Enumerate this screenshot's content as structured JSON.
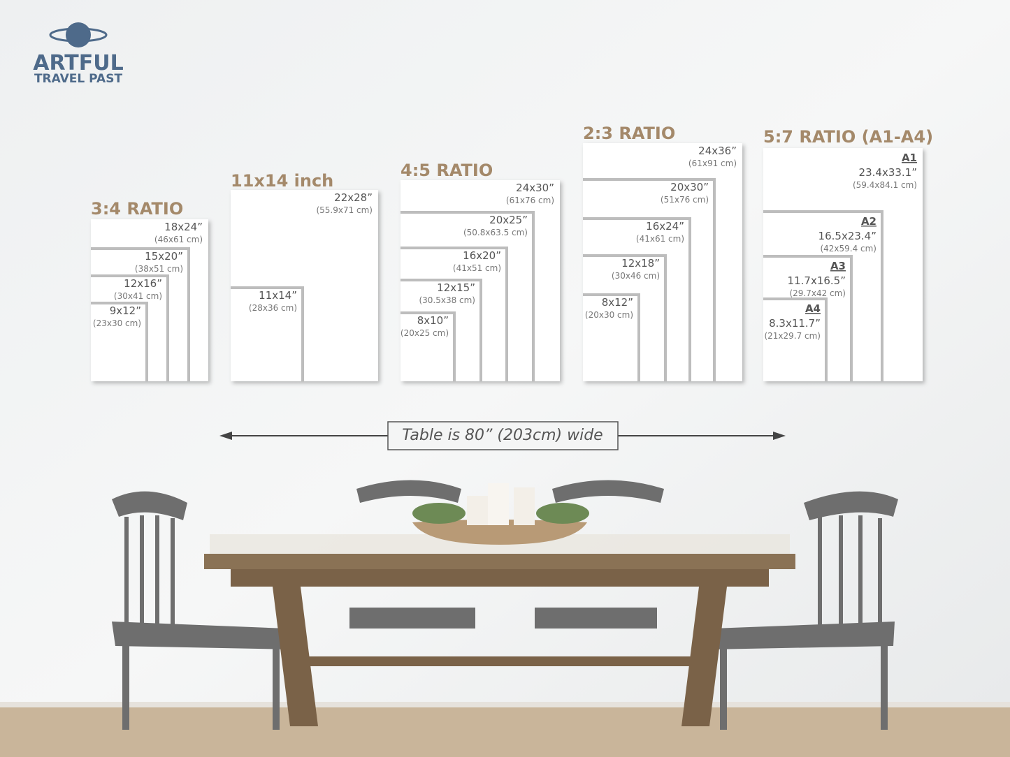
{
  "logo": {
    "line1": "ARTFUL",
    "line2": "TRAVEL PAST"
  },
  "groups": [
    {
      "title": "3:4 RATIO",
      "sizes": [
        {
          "size": "18x24”",
          "metric": "(46x61 cm)"
        },
        {
          "size": "15x20”",
          "metric": "(38x51 cm)"
        },
        {
          "size": "12x16”",
          "metric": "(30x41 cm)"
        },
        {
          "size": "9x12”",
          "metric": "(23x30 cm)"
        }
      ]
    },
    {
      "title": "11x14 inch",
      "sizes": [
        {
          "size": "22x28”",
          "metric": "(55.9x71 cm)"
        },
        {
          "size": "11x14”",
          "metric": "(28x36 cm)"
        }
      ]
    },
    {
      "title": "4:5 RATIO",
      "sizes": [
        {
          "size": "24x30”",
          "metric": "(61x76 cm)"
        },
        {
          "size": "20x25”",
          "metric": "(50.8x63.5 cm)"
        },
        {
          "size": "16x20”",
          "metric": "(41x51 cm)"
        },
        {
          "size": "12x15”",
          "metric": "(30.5x38 cm)"
        },
        {
          "size": "8x10”",
          "metric": "(20x25 cm)"
        }
      ]
    },
    {
      "title": "2:3 RATIO",
      "sizes": [
        {
          "size": "24x36”",
          "metric": "(61x91 cm)"
        },
        {
          "size": "20x30”",
          "metric": "(51x76 cm)"
        },
        {
          "size": "16x24”",
          "metric": "(41x61 cm)"
        },
        {
          "size": "12x18”",
          "metric": "(30x46 cm)"
        },
        {
          "size": "8x12”",
          "metric": "(20x30 cm)"
        }
      ]
    },
    {
      "title": "5:7 RATIO (A1-A4)",
      "sizes": [
        {
          "name": "A1",
          "size": "23.4x33.1”",
          "metric": "(59.4x84.1 cm)"
        },
        {
          "name": "A2",
          "size": "16.5x23.4”",
          "metric": "(42x59.4 cm)"
        },
        {
          "name": "A3",
          "size": "11.7x16.5”",
          "metric": "(29.7x42 cm)"
        },
        {
          "name": "A4",
          "size": "8.3x11.7”",
          "metric": "(21x29.7 cm)"
        }
      ]
    }
  ],
  "table_note": "Table is 80” (203cm) wide"
}
